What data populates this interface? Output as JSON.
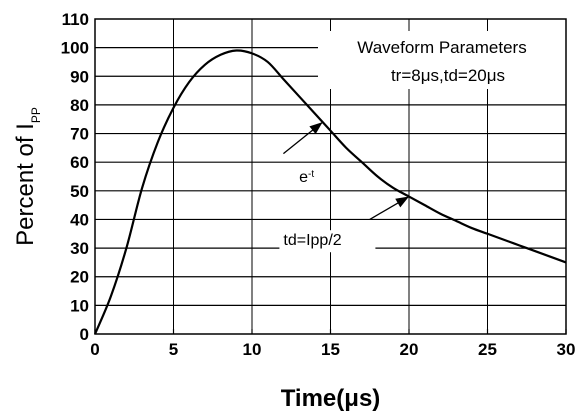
{
  "chart_data": {
    "type": "line",
    "xlabel": "Time(μs)",
    "ylabel_main": "Percent of I",
    "ylabel_sub": "PP",
    "xlim": [
      0,
      30
    ],
    "ylim": [
      0,
      110
    ],
    "x_ticks": [
      "0",
      "5",
      "10",
      "15",
      "20",
      "25",
      "30"
    ],
    "y_ticks": [
      "0",
      "10",
      "20",
      "30",
      "40",
      "50",
      "60",
      "70",
      "80",
      "90",
      "100",
      "110"
    ],
    "grid": true,
    "series": [
      {
        "x": [
          0,
          1,
          2,
          3,
          4,
          5,
          6,
          7,
          8,
          9,
          10,
          11,
          12,
          13,
          14,
          15,
          16,
          17,
          18,
          19,
          20,
          21,
          22,
          23,
          24,
          25,
          26,
          27,
          28,
          29,
          30
        ],
        "y": [
          0,
          13,
          30,
          51,
          67,
          79,
          88,
          94,
          97.5,
          99,
          98,
          95,
          89,
          83,
          77,
          71,
          65,
          60,
          55,
          51,
          48,
          45,
          42,
          39.5,
          37,
          35,
          33,
          31,
          29,
          27,
          25
        ]
      }
    ],
    "legend_box": {
      "title": "Waveform Parameters",
      "params": "tr=8μs,td=20μs"
    },
    "annotations": [
      {
        "text_base": "e",
        "text_sup": "-t",
        "text_x": 13,
        "text_y": 53,
        "arrow_from": [
          12,
          63
        ],
        "arrow_to": [
          14.5,
          74
        ]
      },
      {
        "text": "td=Ipp/2",
        "text_x": 12,
        "text_y": 31,
        "arrow_from": [
          17.5,
          40
        ],
        "arrow_to": [
          20,
          48
        ]
      }
    ]
  }
}
